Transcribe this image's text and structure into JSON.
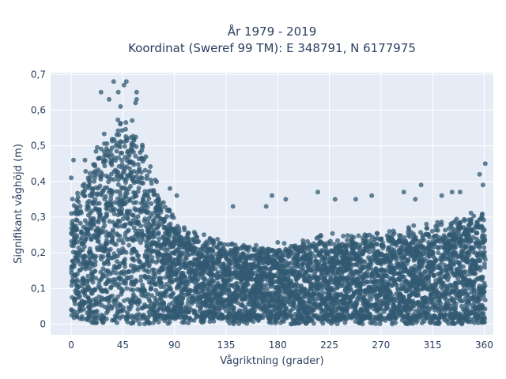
{
  "chart_data": {
    "type": "scatter",
    "title_line1": "År 1979 - 2019",
    "title_line2": "Koordinat (Sweref 99 TM): E 348791, N 6177975",
    "xlabel": "Vågriktning (grader)",
    "ylabel": "Signifikant våghöjd (m)",
    "xlim": [
      -18,
      368
    ],
    "ylim": [
      -0.03,
      0.705
    ],
    "xticks": [
      0,
      45,
      90,
      135,
      180,
      225,
      270,
      315,
      360
    ],
    "xtick_labels": [
      "0",
      "45",
      "90",
      "135",
      "180",
      "225",
      "270",
      "315",
      "360"
    ],
    "yticks": [
      0,
      0.1,
      0.2,
      0.3,
      0.4,
      0.5,
      0.6,
      0.7
    ],
    "ytick_labels": [
      "0",
      "0,1",
      "0,2",
      "0,3",
      "0,4",
      "0,5",
      "0,6",
      "0,7"
    ],
    "grid": true,
    "marker_color": "#325a72",
    "plot_background": "#e5ecf6",
    "envelope": [
      {
        "x": 0,
        "y_max": 0.36
      },
      {
        "x": 10,
        "y_max": 0.42
      },
      {
        "x": 20,
        "y_max": 0.48
      },
      {
        "x": 30,
        "y_max": 0.55
      },
      {
        "x": 40,
        "y_max": 0.6
      },
      {
        "x": 45,
        "y_max": 0.62
      },
      {
        "x": 50,
        "y_max": 0.6
      },
      {
        "x": 60,
        "y_max": 0.55
      },
      {
        "x": 70,
        "y_max": 0.45
      },
      {
        "x": 80,
        "y_max": 0.36
      },
      {
        "x": 90,
        "y_max": 0.3
      },
      {
        "x": 100,
        "y_max": 0.27
      },
      {
        "x": 120,
        "y_max": 0.25
      },
      {
        "x": 150,
        "y_max": 0.23
      },
      {
        "x": 180,
        "y_max": 0.23
      },
      {
        "x": 210,
        "y_max": 0.25
      },
      {
        "x": 240,
        "y_max": 0.26
      },
      {
        "x": 270,
        "y_max": 0.26
      },
      {
        "x": 300,
        "y_max": 0.28
      },
      {
        "x": 330,
        "y_max": 0.3
      },
      {
        "x": 350,
        "y_max": 0.32
      },
      {
        "x": 360,
        "y_max": 0.33
      }
    ],
    "outliers": [
      {
        "x": 37,
        "y": 0.68
      },
      {
        "x": 46,
        "y": 0.67
      },
      {
        "x": 48,
        "y": 0.68
      },
      {
        "x": 41,
        "y": 0.65
      },
      {
        "x": 57,
        "y": 0.65
      },
      {
        "x": 33,
        "y": 0.63
      },
      {
        "x": 26,
        "y": 0.65
      },
      {
        "x": 57,
        "y": 0.63
      },
      {
        "x": 56,
        "y": 0.62
      },
      {
        "x": 43,
        "y": 0.61
      },
      {
        "x": 12,
        "y": 0.46
      },
      {
        "x": 2,
        "y": 0.46
      },
      {
        "x": 0,
        "y": 0.41
      },
      {
        "x": 86,
        "y": 0.38
      },
      {
        "x": 92,
        "y": 0.36
      },
      {
        "x": 175,
        "y": 0.36
      },
      {
        "x": 170,
        "y": 0.33
      },
      {
        "x": 187,
        "y": 0.35
      },
      {
        "x": 141,
        "y": 0.33
      },
      {
        "x": 215,
        "y": 0.37
      },
      {
        "x": 248,
        "y": 0.35
      },
      {
        "x": 262,
        "y": 0.36
      },
      {
        "x": 290,
        "y": 0.37
      },
      {
        "x": 305,
        "y": 0.39
      },
      {
        "x": 323,
        "y": 0.36
      },
      {
        "x": 332,
        "y": 0.37
      },
      {
        "x": 339,
        "y": 0.37
      },
      {
        "x": 356,
        "y": 0.42
      },
      {
        "x": 359,
        "y": 0.39
      },
      {
        "x": 361,
        "y": 0.45
      },
      {
        "x": 230,
        "y": 0.35
      },
      {
        "x": 300,
        "y": 0.35
      }
    ]
  }
}
